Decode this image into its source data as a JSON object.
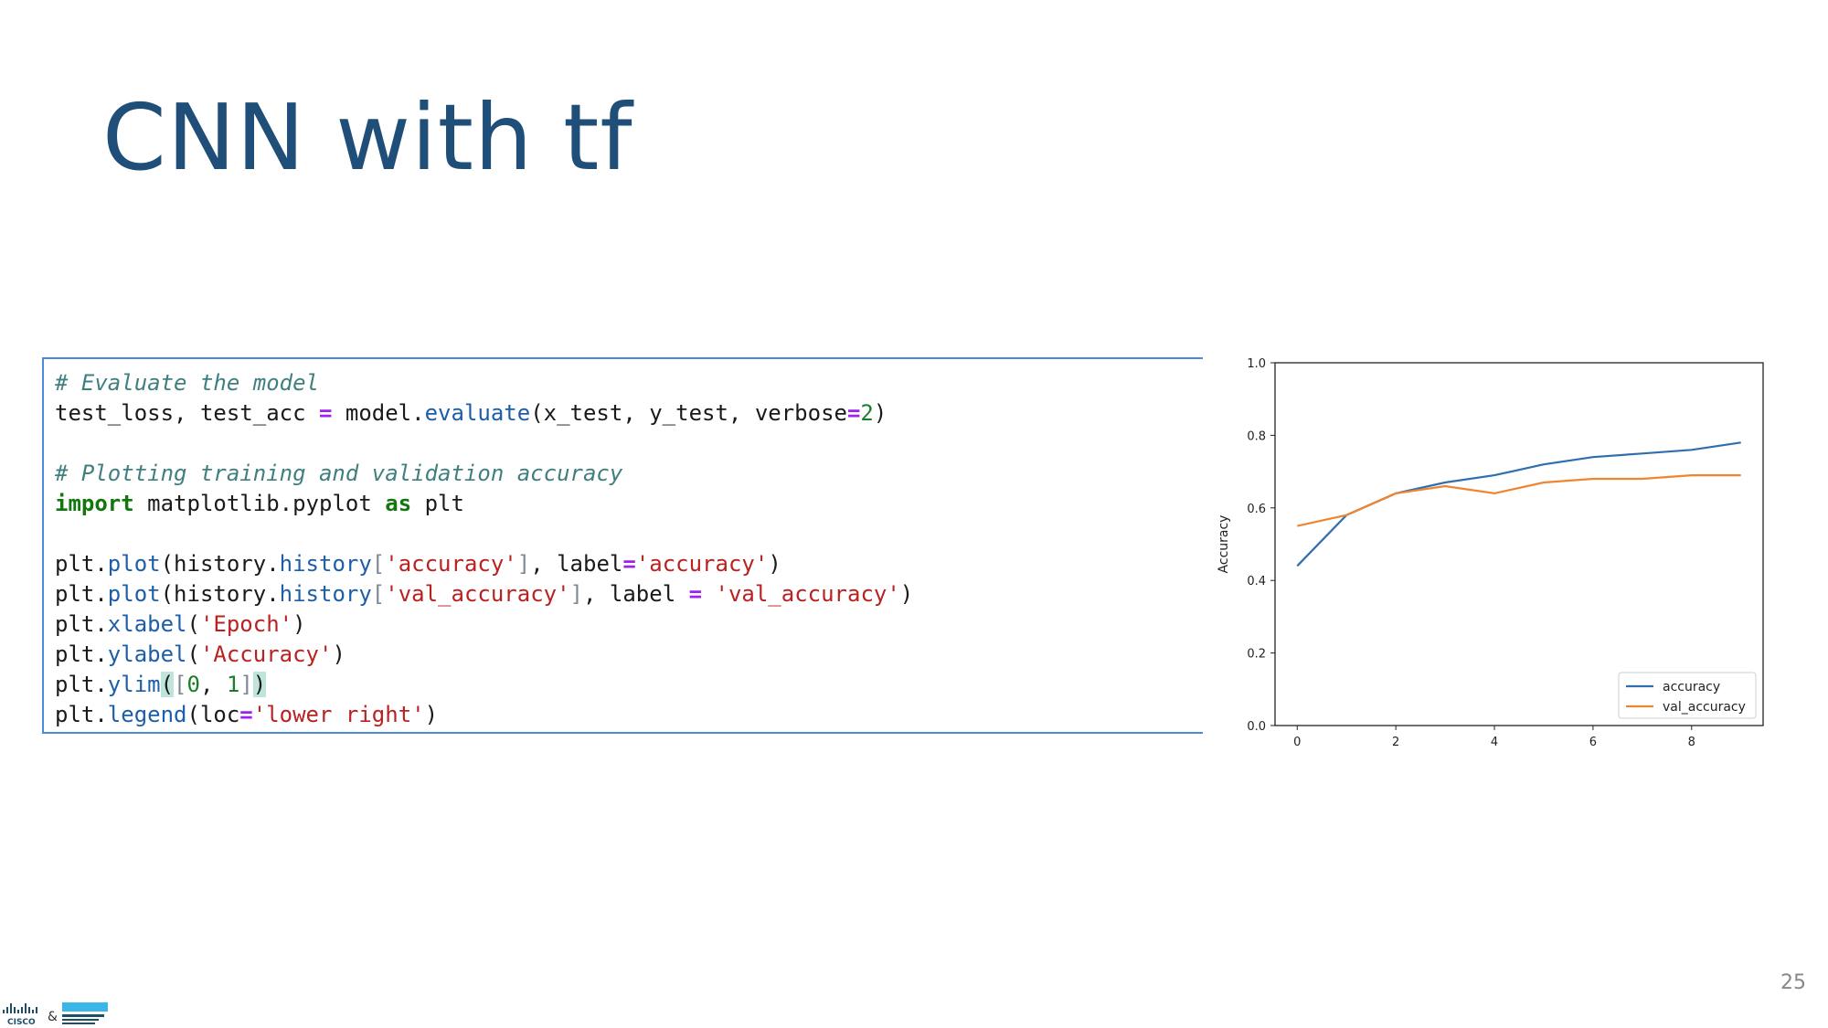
{
  "slide": {
    "title": "CNN with tf",
    "page_number": "25"
  },
  "code": {
    "comment1": "# Evaluate the model",
    "line2": {
      "a": "test_loss, test_acc ",
      "eq": "=",
      "b": " model.",
      "fn": "evaluate",
      "c": "(x_test, y_test, verbose",
      "eq2": "=",
      "num": "2",
      "d": ")"
    },
    "comment2": "# Plotting training and validation accuracy",
    "line5": {
      "kw1": "import",
      "a": " matplotlib.pyplot ",
      "kw2": "as",
      "b": " plt"
    },
    "line7": {
      "a": "plt.",
      "fn1": "plot",
      "b": "(history.",
      "fn2": "history",
      "br1": "[",
      "s1": "'accuracy'",
      "br2": "]",
      "c": ", label",
      "eq": "=",
      "s2": "'accuracy'",
      "d": ")"
    },
    "line8": {
      "a": "plt.",
      "fn1": "plot",
      "b": "(history.",
      "fn2": "history",
      "br1": "[",
      "s1": "'val_accuracy'",
      "br2": "]",
      "c": ", label ",
      "eq": "=",
      "sp": " ",
      "s2": "'val_accuracy'",
      "d": ")"
    },
    "line9": {
      "a": "plt.",
      "fn": "xlabel",
      "b": "(",
      "s": "'Epoch'",
      "c": ")"
    },
    "line10": {
      "a": "plt.",
      "fn": "ylabel",
      "b": "(",
      "s": "'Accuracy'",
      "c": ")"
    },
    "line11": {
      "a": "plt.",
      "fn": "ylim",
      "p1": "(",
      "br1": "[",
      "n1": "0",
      "c": ", ",
      "n2": "1",
      "br2": "]",
      "p2": ")"
    },
    "line12": {
      "a": "plt.",
      "fn": "legend",
      "b": "(loc",
      "eq": "=",
      "s": "'lower right'",
      "c": ")"
    }
  },
  "logos": {
    "cisco": "CISCO",
    "amp": "&"
  },
  "chart_data": {
    "type": "line",
    "xlabel": "",
    "ylabel": "Accuracy",
    "xlim": [
      -0.45,
      9.45
    ],
    "ylim": [
      0,
      1
    ],
    "xticks": [
      "0",
      "2",
      "4",
      "6",
      "8"
    ],
    "yticks": [
      "0.0",
      "0.2",
      "0.4",
      "0.6",
      "0.8",
      "1.0"
    ],
    "grid": false,
    "legend_position": "lower right",
    "x": [
      0,
      1,
      2,
      3,
      4,
      5,
      6,
      7,
      8,
      9
    ],
    "series": [
      {
        "name": "accuracy",
        "color": "#2f6fb0",
        "values": [
          0.44,
          0.58,
          0.64,
          0.67,
          0.69,
          0.72,
          0.74,
          0.75,
          0.76,
          0.78
        ]
      },
      {
        "name": "val_accuracy",
        "color": "#ef8530",
        "values": [
          0.55,
          0.58,
          0.64,
          0.66,
          0.64,
          0.67,
          0.68,
          0.68,
          0.69,
          0.69
        ]
      }
    ]
  }
}
